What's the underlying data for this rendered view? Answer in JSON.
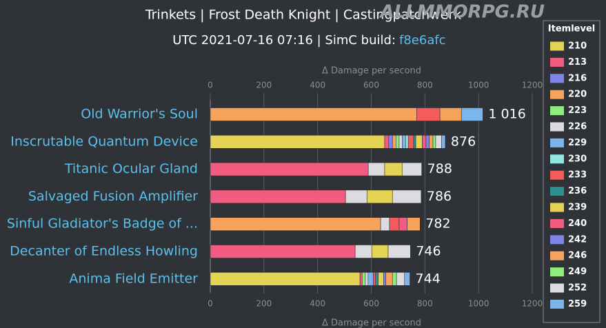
{
  "chart_data": {
    "type": "stacked-bar-horizontal",
    "title": "Trinkets | Frost Death Knight | Castingpatchwerk",
    "subtitle": "UTC 2021-07-16 07:16 | SimC build:",
    "build": "f8e6afc",
    "watermark": "ALLMMORPG.RU",
    "x_label": "Δ Damage per second",
    "legend_title": "Itemlevel",
    "categories": [
      "Old Warrior's Soul",
      "Inscrutable Quantum Device",
      "Titanic Ocular Gland",
      "Salvaged Fusion Amplifier",
      "Sinful Gladiator's Badge of ...",
      "Decanter of Endless Howling",
      "Anima Field Emitter"
    ],
    "totals": [
      1016,
      876,
      788,
      786,
      782,
      746,
      744
    ],
    "total_labels": [
      "1 016",
      "876",
      "788",
      "786",
      "782",
      "746",
      "744"
    ],
    "xlim": [
      0,
      1200
    ],
    "xticks": [
      0,
      200,
      400,
      600,
      800,
      1000,
      1200
    ],
    "series": [
      {
        "name": "210",
        "color": "#e4d354",
        "values": [
          null,
          650,
          null,
          null,
          null,
          null,
          558
        ]
      },
      {
        "name": "213",
        "color": "#f15c80",
        "values": [
          null,
          15,
          589,
          504,
          null,
          540,
          8
        ]
      },
      {
        "name": "216",
        "color": "#8085e9",
        "values": [
          null,
          14,
          null,
          null,
          null,
          null,
          null
        ]
      },
      {
        "name": "220",
        "color": "#f7a35c",
        "values": [
          769,
          13,
          null,
          null,
          635,
          null,
          null
        ]
      },
      {
        "name": "223",
        "color": "#90ed7d",
        "values": [
          null,
          12,
          null,
          null,
          null,
          null,
          12
        ]
      },
      {
        "name": "226",
        "color": "#dcdce0",
        "values": [
          null,
          12,
          61,
          80,
          33,
          62,
          10
        ]
      },
      {
        "name": "229",
        "color": "#7cb5ec",
        "values": [
          null,
          12,
          null,
          null,
          null,
          null,
          20
        ]
      },
      {
        "name": "230",
        "color": "#91e8e1",
        "values": [
          null,
          10,
          null,
          null,
          null,
          null,
          null
        ]
      },
      {
        "name": "233",
        "color": "#f45b5b",
        "values": [
          87,
          20,
          null,
          null,
          36,
          null,
          8
        ]
      },
      {
        "name": "236",
        "color": "#2b908f",
        "values": [
          null,
          8,
          null,
          null,
          null,
          null,
          10
        ]
      },
      {
        "name": "239",
        "color": "#e4d354",
        "values": [
          null,
          24,
          65,
          95,
          null,
          61,
          20
        ]
      },
      {
        "name": "240",
        "color": "#f15c80",
        "values": [
          null,
          14,
          null,
          null,
          30,
          null,
          null
        ]
      },
      {
        "name": "242",
        "color": "#8085e9",
        "values": [
          null,
          12,
          null,
          null,
          null,
          null,
          8
        ]
      },
      {
        "name": "246",
        "color": "#f7a35c",
        "values": [
          80,
          14,
          null,
          null,
          48,
          null,
          25
        ]
      },
      {
        "name": "249",
        "color": "#90ed7d",
        "values": [
          null,
          10,
          null,
          null,
          null,
          null,
          15
        ]
      },
      {
        "name": "252",
        "color": "#dcdce0",
        "values": [
          null,
          22,
          73,
          107,
          null,
          83,
          30
        ]
      },
      {
        "name": "259",
        "color": "#7cb5ec",
        "values": [
          80,
          14,
          null,
          null,
          null,
          null,
          20
        ]
      }
    ]
  }
}
